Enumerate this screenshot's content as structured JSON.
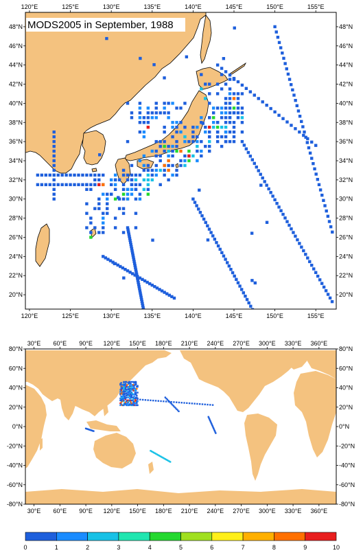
{
  "title": "MODS2005 in September, 1988",
  "colors": {
    "land": "#f4c27f",
    "ocean": "#ffffff",
    "frame": "#000000",
    "levels": [
      "#1e5fdc",
      "#1a8cff",
      "#18c1e6",
      "#20e6b0",
      "#25d830",
      "#a0e020",
      "#ffef1a",
      "#ffb000",
      "#ff7000",
      "#e81e1e"
    ]
  },
  "top_map": {
    "lon_range": [
      119.5,
      157.5
    ],
    "lat_range": [
      18.5,
      49.5
    ],
    "top_x_ticks": [
      "120°E",
      "125°E",
      "130°E",
      "135°E",
      "140°E",
      "145°E",
      "150°E",
      "155°E"
    ],
    "bottom_x_ticks": [
      "120°E",
      "125°E",
      "130°E",
      "135°E",
      "140°E",
      "145°E",
      "150°E",
      "155°E"
    ],
    "left_y_ticks": [
      "48°N",
      "46°N",
      "44°N",
      "42°N",
      "40°N",
      "38°N",
      "36°N",
      "34°N",
      "32°N",
      "30°N",
      "28°N",
      "26°N",
      "24°N",
      "22°N",
      "20°N"
    ],
    "right_y_ticks": [
      "48°N",
      "46°N",
      "44°N",
      "42°N",
      "40°N",
      "38°N",
      "36°N",
      "34°N",
      "32°N",
      "30°N",
      "28°N",
      "26°N",
      "24°N",
      "22°N",
      "20°N"
    ]
  },
  "bottom_map": {
    "lon_range": [
      20,
      380
    ],
    "lat_range": [
      -80,
      80
    ],
    "top_x_ticks": [
      "30°E",
      "60°E",
      "90°E",
      "120°E",
      "150°E",
      "180°E",
      "210°E",
      "240°E",
      "270°E",
      "300°E",
      "330°E",
      "360°E"
    ],
    "bottom_x_ticks": [
      "30°E",
      "60°E",
      "90°E",
      "120°E",
      "150°E",
      "180°E",
      "210°E",
      "240°E",
      "270°E",
      "300°E",
      "330°E",
      "360°E"
    ],
    "left_y_ticks": [
      "80°N",
      "60°N",
      "40°N",
      "20°N",
      "0°N",
      "-20°N",
      "-40°N",
      "-60°N",
      "-80°N"
    ],
    "right_y_ticks": [
      "80°N",
      "60°N",
      "40°N",
      "20°N",
      "0°N",
      "-20°N",
      "-40°N",
      "-60°N",
      "-80°N"
    ]
  },
  "colorbar": {
    "labels": [
      "0",
      "1",
      "2",
      "3",
      "4",
      "5",
      "6",
      "7",
      "8",
      "9",
      "10"
    ]
  }
}
